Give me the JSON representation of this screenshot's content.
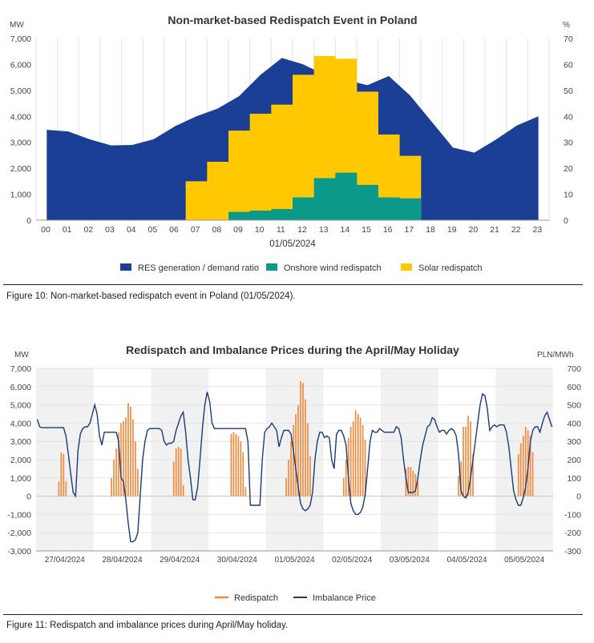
{
  "figure10": {
    "caption": "Figure 10: Non-market-based redispatch event in Poland (01/05/2024).",
    "chart_data": {
      "type": "area",
      "title": "Non-market-based Redispatch Event in Poland",
      "xlabel": "01/05/2024",
      "ylabel_left": "MW",
      "ylabel_right": "%",
      "ylim_left": [
        0,
        7000
      ],
      "ylim_right": [
        0,
        70
      ],
      "yticks_left": [
        "0",
        "1,000",
        "2,000",
        "3,000",
        "4,000",
        "5,000",
        "6,000",
        "7,000"
      ],
      "yticks_right": [
        "0",
        "10",
        "20",
        "30",
        "40",
        "50",
        "60",
        "70"
      ],
      "categories": [
        "00",
        "01",
        "02",
        "03",
        "04",
        "05",
        "06",
        "07",
        "08",
        "09",
        "10",
        "11",
        "12",
        "13",
        "14",
        "15",
        "16",
        "17",
        "18",
        "19",
        "20",
        "21",
        "22",
        "23"
      ],
      "series": [
        {
          "name": "RES generation / demand ratio",
          "axis": "right",
          "color": "#1a3f95",
          "values": [
            34.8,
            34.2,
            31.2,
            28.8,
            29,
            31.2,
            36.2,
            40,
            43,
            47.8,
            56,
            62.5,
            60,
            56,
            54,
            52,
            55.5,
            48,
            38,
            28,
            26,
            31,
            36.5,
            40
          ]
        },
        {
          "name": "Solar redispatch",
          "axis": "left",
          "color": "#ffc800",
          "values": [
            0,
            0,
            0,
            0,
            0,
            0,
            0,
            1500,
            2250,
            3450,
            4100,
            4450,
            5600,
            6320,
            6220,
            4950,
            3300,
            2480,
            0,
            0,
            0,
            0,
            0,
            0
          ]
        },
        {
          "name": "Onshore wind redispatch",
          "axis": "left",
          "color": "#0b9a8a",
          "values": [
            0,
            0,
            0,
            0,
            0,
            0,
            0,
            0,
            0,
            320,
            370,
            430,
            880,
            1620,
            1830,
            1360,
            880,
            840,
            0,
            0,
            0,
            0,
            0,
            0
          ]
        }
      ],
      "legend": [
        "RES generation / demand ratio",
        "Onshore wind redispatch",
        "Solar redispatch"
      ]
    }
  },
  "figure11": {
    "caption": "Figure 11: Redispatch and imbalance prices during April/May holiday.",
    "chart_data": {
      "type": "bar",
      "title": "Redispatch and Imbalance Prices during the April/May Holiday",
      "ylabel_left": "MW",
      "ylabel_right": "PLN/MWh",
      "ylim_left": [
        -3000,
        7000
      ],
      "ylim_right": [
        -300,
        700
      ],
      "yticks_left": [
        "-3,000",
        "-2,000",
        "-1,000",
        "0",
        "1,000",
        "2,000",
        "3,000",
        "4,000",
        "5,000",
        "6,000",
        "7,000"
      ],
      "yticks_right": [
        "-300",
        "-200",
        "-100",
        "0",
        "100",
        "200",
        "300",
        "400",
        "500",
        "600",
        "700"
      ],
      "days": [
        "27/04/2024",
        "28/04/2024",
        "29/04/2024",
        "30/04/2024",
        "01/05/2024",
        "02/05/2024",
        "03/05/2024",
        "04/05/2024",
        "05/05/2024"
      ],
      "series": [
        {
          "name": "Redispatch",
          "type": "bar",
          "color": "#f08a3c",
          "daily_hour_values": [
            {
              "start_hour": 9,
              "values": [
                800,
                2400,
                2300,
                800
              ]
            },
            {
              "start_hour": 7,
              "values": [
                1000,
                2000,
                2600,
                3500,
                4000,
                4100,
                4300,
                5100,
                4900,
                4200,
                3000,
                1500
              ]
            },
            {
              "start_hour": 9,
              "values": [
                1900,
                2600,
                2700,
                2600,
                600
              ]
            },
            {
              "start_hour": 9,
              "values": [
                3400,
                3500,
                3400,
                3300,
                3000,
                2400,
                500
              ]
            },
            {
              "start_hour": 8,
              "values": [
                1000,
                2000,
                3000,
                3900,
                4500,
                5000,
                6300,
                6200,
                5300,
                4000,
                2200
              ]
            },
            {
              "start_hour": 8,
              "values": [
                1000,
                2000,
                3200,
                3800,
                4100,
                4700,
                4500,
                4300,
                3900,
                3100
              ]
            },
            {
              "start_hour": 10,
              "values": [
                1500,
                1600,
                1600,
                1400,
                1200,
                800
              ]
            },
            {
              "start_hour": 8,
              "values": [
                1100,
                1900,
                3800,
                3800,
                4400,
                4100,
                2300
              ]
            },
            {
              "start_hour": 9,
              "values": [
                2300,
                2900,
                3300,
                3800,
                3600,
                3300,
                2400
              ]
            }
          ]
        },
        {
          "name": "Imbalance Price",
          "type": "line",
          "color": "#1a3a7a",
          "hourly_values": [
            420,
            380,
            375,
            375,
            375,
            375,
            375,
            375,
            375,
            375,
            375,
            375,
            330,
            230,
            120,
            20,
            0,
            250,
            340,
            370,
            380,
            380,
            400,
            450,
            500,
            450,
            330,
            280,
            350,
            350,
            350,
            350,
            350,
            350,
            300,
            100,
            80,
            -20,
            -150,
            -250,
            -250,
            -240,
            -200,
            0,
            200,
            300,
            360,
            370,
            370,
            370,
            370,
            370,
            360,
            300,
            280,
            290,
            290,
            300,
            360,
            400,
            440,
            460,
            350,
            200,
            100,
            -20,
            -20,
            50,
            200,
            370,
            500,
            570,
            520,
            400,
            370,
            370,
            370,
            370,
            370,
            370,
            370,
            370,
            370,
            370,
            370,
            370,
            370,
            370,
            300,
            -50,
            -50,
            -50,
            -50,
            -50,
            200,
            350,
            370,
            380,
            400,
            380,
            360,
            270,
            320,
            360,
            360,
            360,
            340,
            250,
            150,
            50,
            -40,
            -70,
            -80,
            -70,
            -50,
            20,
            200,
            300,
            350,
            350,
            320,
            330,
            320,
            200,
            150,
            340,
            360,
            360,
            330,
            280,
            100,
            -40,
            -80,
            -100,
            -100,
            -90,
            -60,
            10,
            150,
            300,
            360,
            350,
            350,
            370,
            360,
            350,
            350,
            350,
            350,
            350,
            380,
            370,
            320,
            200,
            100,
            20,
            20,
            20,
            30,
            100,
            200,
            280,
            330,
            380,
            390,
            430,
            420,
            380,
            350,
            360,
            360,
            340,
            360,
            370,
            360,
            330,
            230,
            30,
            0,
            -10,
            20,
            100,
            200,
            300,
            400,
            500,
            560,
            550,
            480,
            360,
            380,
            390,
            380,
            390,
            390,
            390,
            350,
            270,
            150,
            30,
            -20,
            -50,
            -50,
            -10,
            50,
            150,
            300,
            360,
            380,
            380,
            350,
            400,
            440,
            460,
            420,
            380
          ]
        }
      ],
      "legend": [
        "Redispatch",
        "Imbalance Price"
      ]
    }
  }
}
